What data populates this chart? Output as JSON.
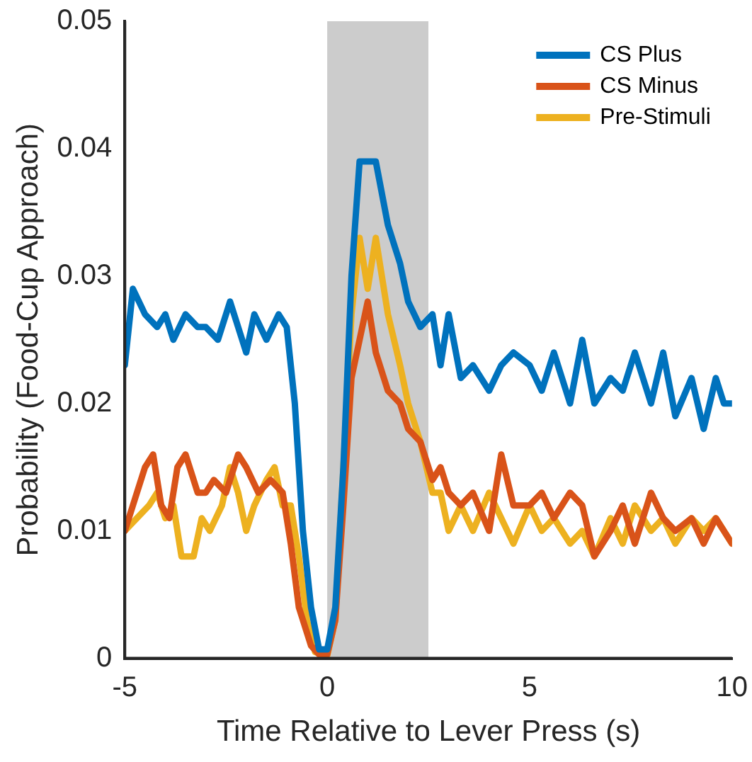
{
  "chart_data": {
    "type": "line",
    "xlabel": "Time Relative to Lever Press (s)",
    "ylabel": "Probability (Food-Cup Approach)",
    "xlim": [
      -5,
      10
    ],
    "xticks": [
      -5,
      0,
      5,
      10
    ],
    "ylim": [
      0,
      0.05
    ],
    "yticks": [
      0,
      0.01,
      0.02,
      0.03,
      0.04,
      0.05
    ],
    "grid": false,
    "legend": "top right",
    "marker": "none",
    "line_style": "solid",
    "bands": [
      {
        "axis": "x",
        "from": 0,
        "to": 2.5,
        "color": "#cccccc"
      }
    ],
    "series": [
      {
        "name": "CS Plus",
        "color": "#0072bd",
        "x": [
          -5,
          -4.8,
          -4.5,
          -4.2,
          -4,
          -3.8,
          -3.5,
          -3.2,
          -3,
          -2.7,
          -2.4,
          -2,
          -1.8,
          -1.5,
          -1.2,
          -1,
          -0.8,
          -0.6,
          -0.4,
          -0.2,
          0,
          0.2,
          0.4,
          0.6,
          0.8,
          1,
          1.2,
          1.5,
          1.8,
          2,
          2.3,
          2.6,
          2.8,
          3,
          3.3,
          3.6,
          4,
          4.3,
          4.6,
          5,
          5.3,
          5.6,
          6,
          6.3,
          6.6,
          7,
          7.3,
          7.6,
          8,
          8.3,
          8.6,
          9,
          9.3,
          9.6,
          9.8,
          10
        ],
        "values": [
          0.023,
          0.029,
          0.027,
          0.026,
          0.027,
          0.025,
          0.027,
          0.026,
          0.026,
          0.025,
          0.028,
          0.024,
          0.027,
          0.025,
          0.027,
          0.026,
          0.02,
          0.01,
          0.004,
          0.0007,
          0.0007,
          0.004,
          0.015,
          0.03,
          0.039,
          0.039,
          0.039,
          0.034,
          0.031,
          0.028,
          0.026,
          0.027,
          0.023,
          0.027,
          0.022,
          0.023,
          0.021,
          0.023,
          0.024,
          0.023,
          0.021,
          0.024,
          0.02,
          0.025,
          0.02,
          0.022,
          0.021,
          0.024,
          0.02,
          0.024,
          0.019,
          0.022,
          0.018,
          0.022,
          0.02,
          0.02
        ]
      },
      {
        "name": "CS Minus",
        "color": "#d95319",
        "x": [
          -5,
          -4.8,
          -4.5,
          -4.3,
          -4.1,
          -3.9,
          -3.7,
          -3.5,
          -3.2,
          -3,
          -2.8,
          -2.5,
          -2.2,
          -2,
          -1.7,
          -1.4,
          -1.1,
          -0.9,
          -0.7,
          -0.4,
          -0.2,
          0,
          0.2,
          0.4,
          0.6,
          0.8,
          1,
          1.2,
          1.5,
          1.8,
          2,
          2.3,
          2.6,
          2.8,
          3,
          3.3,
          3.6,
          4,
          4.3,
          4.6,
          5,
          5.3,
          5.6,
          6,
          6.3,
          6.6,
          7,
          7.3,
          7.6,
          8,
          8.3,
          8.6,
          9,
          9.3,
          9.6,
          10
        ],
        "values": [
          0.01,
          0.012,
          0.015,
          0.016,
          0.012,
          0.011,
          0.015,
          0.016,
          0.013,
          0.013,
          0.014,
          0.013,
          0.016,
          0.015,
          0.013,
          0.014,
          0.013,
          0.009,
          0.004,
          0.001,
          0.0003,
          0.0003,
          0.003,
          0.012,
          0.022,
          0.025,
          0.028,
          0.024,
          0.021,
          0.02,
          0.018,
          0.017,
          0.014,
          0.015,
          0.013,
          0.012,
          0.013,
          0.01,
          0.016,
          0.012,
          0.012,
          0.013,
          0.011,
          0.013,
          0.012,
          0.008,
          0.01,
          0.012,
          0.009,
          0.013,
          0.011,
          0.01,
          0.011,
          0.009,
          0.011,
          0.009
        ]
      },
      {
        "name": "Pre-Stimuli",
        "color": "#edb120",
        "x": [
          -5,
          -4.7,
          -4.4,
          -4.2,
          -4,
          -3.8,
          -3.6,
          -3.3,
          -3.1,
          -2.9,
          -2.6,
          -2.4,
          -2.2,
          -2,
          -1.8,
          -1.5,
          -1.3,
          -1.1,
          -0.9,
          -0.7,
          -0.5,
          -0.3,
          0,
          0.2,
          0.4,
          0.6,
          0.8,
          1,
          1.2,
          1.5,
          1.8,
          2,
          2.3,
          2.6,
          2.8,
          3,
          3.3,
          3.6,
          4,
          4.3,
          4.6,
          5,
          5.3,
          5.6,
          6,
          6.3,
          6.6,
          7,
          7.3,
          7.6,
          8,
          8.3,
          8.6,
          9,
          9.3,
          9.6,
          10
        ],
        "values": [
          0.01,
          0.011,
          0.012,
          0.013,
          0.011,
          0.012,
          0.008,
          0.008,
          0.011,
          0.01,
          0.012,
          0.015,
          0.013,
          0.01,
          0.012,
          0.014,
          0.015,
          0.012,
          0.012,
          0.008,
          0.003,
          0.0005,
          0.0002,
          0.003,
          0.015,
          0.027,
          0.033,
          0.029,
          0.033,
          0.027,
          0.023,
          0.02,
          0.017,
          0.013,
          0.013,
          0.01,
          0.012,
          0.01,
          0.013,
          0.011,
          0.009,
          0.012,
          0.01,
          0.011,
          0.009,
          0.01,
          0.008,
          0.011,
          0.009,
          0.012,
          0.01,
          0.011,
          0.009,
          0.011,
          0.01,
          0.011,
          0.009
        ]
      }
    ]
  }
}
